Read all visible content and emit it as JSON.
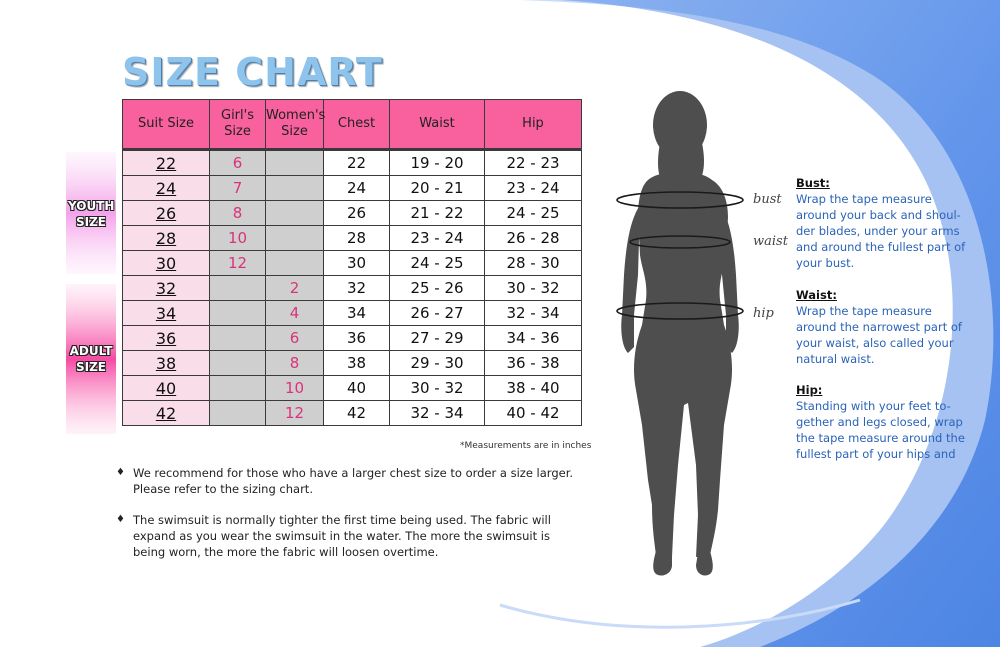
{
  "title": "SIZE CHART",
  "table": {
    "headers": [
      "Suit Size",
      "Girl's Size",
      "Women's Size",
      "Chest",
      "Waist",
      "Hip"
    ],
    "rows": [
      {
        "suit": "22",
        "girl": "6",
        "women": "",
        "chest": "22",
        "waist": "19 - 20",
        "hip": "22 - 23"
      },
      {
        "suit": "24",
        "girl": "7",
        "women": "",
        "chest": "24",
        "waist": "20 - 21",
        "hip": "23 - 24"
      },
      {
        "suit": "26",
        "girl": "8",
        "women": "",
        "chest": "26",
        "waist": "21 - 22",
        "hip": "24 - 25"
      },
      {
        "suit": "28",
        "girl": "10",
        "women": "",
        "chest": "28",
        "waist": "23 - 24",
        "hip": "26 - 28"
      },
      {
        "suit": "30",
        "girl": "12",
        "women": "",
        "chest": "30",
        "waist": "24 - 25",
        "hip": "28 - 30"
      },
      {
        "suit": "32",
        "girl": "",
        "women": "2",
        "chest": "32",
        "waist": "25 - 26",
        "hip": "30 - 32"
      },
      {
        "suit": "34",
        "girl": "",
        "women": "4",
        "chest": "34",
        "waist": "26 - 27",
        "hip": "32 - 34"
      },
      {
        "suit": "36",
        "girl": "",
        "women": "6",
        "chest": "36",
        "waist": "27 - 29",
        "hip": "34 - 36"
      },
      {
        "suit": "38",
        "girl": "",
        "women": "8",
        "chest": "38",
        "waist": "29 - 30",
        "hip": "36 - 38"
      },
      {
        "suit": "40",
        "girl": "",
        "women": "10",
        "chest": "40",
        "waist": "30 - 32",
        "hip": "38 - 40"
      },
      {
        "suit": "42",
        "girl": "",
        "women": "12",
        "chest": "42",
        "waist": "32 - 34",
        "hip": "40 - 42"
      }
    ]
  },
  "note": "*Measurements are in inches",
  "side_labels": {
    "youth": [
      "YOUTH",
      "SIZE"
    ],
    "adult": [
      "ADULT",
      "SIZE"
    ]
  },
  "bullets": [
    "We recommend for those who have a larger chest size to order a size larger.  Please refer to the sizing chart.",
    "The swimsuit is normally tighter the first time being used.  The fabric will expand as you wear the swimsuit in the water.  The more the swimsuit is being worn, the more the fabric will loosen overtime."
  ],
  "figure_labels": {
    "bust": "bust",
    "waist": "waist",
    "hip": "hip"
  },
  "instructions": {
    "bust": {
      "heading": "Bust:",
      "text": "Wrap the tape measure around your back and shoul-der blades, under your arms and around the fullest part of your bust."
    },
    "waist": {
      "heading": "Waist:",
      "text": "Wrap the tape measure around the narrowest part of your waist, also called your natural waist."
    },
    "hip": {
      "heading": "Hip:",
      "text": "Standing with your feet to-gether and legs closed, wrap the tape measure around the fullest part of your hips and"
    }
  },
  "colors": {
    "header_pink": "#f8619e",
    "suit_cell_pink": "#f9dde9",
    "grey_cell": "#cfcfcf",
    "size_text": "#d9337a",
    "instruction_blue": "#2a63b8",
    "swoosh_blue": "#4f86e6",
    "silhouette": "#4e4e4e"
  }
}
